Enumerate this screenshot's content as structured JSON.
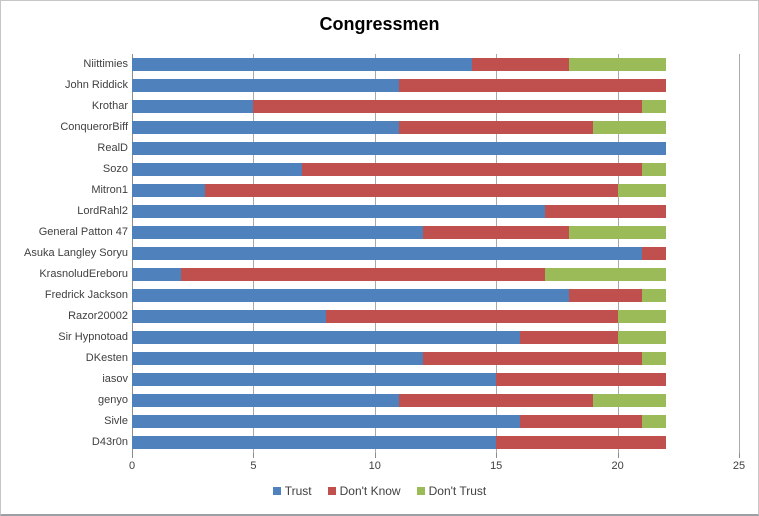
{
  "chart_data": {
    "type": "bar",
    "orientation": "horizontal",
    "stacked": true,
    "title": "Congressmen",
    "categories": [
      "Niittimies",
      "John Riddick",
      "Krothar",
      "ConquerorBiff",
      "RealD",
      "Sozo",
      "Mitron1",
      "LordRahl2",
      "General Patton 47",
      "Asuka Langley Soryu",
      "KrasnoludEreboru",
      "Fredrick Jackson",
      "Razor20002",
      "Sir Hypnotoad",
      "DKesten",
      "iasov",
      "genyo",
      "Sivle",
      "D43r0n"
    ],
    "series": [
      {
        "name": "Trust",
        "color": "#4F81BD",
        "values": [
          14,
          11,
          5,
          11,
          22,
          7,
          3,
          17,
          12,
          21,
          2,
          18,
          8,
          16,
          12,
          15,
          11,
          16,
          15
        ]
      },
      {
        "name": "Don't Know",
        "color": "#C0504D",
        "values": [
          4,
          11,
          16,
          8,
          0,
          14,
          17,
          5,
          6,
          1,
          15,
          3,
          12,
          4,
          9,
          7,
          8,
          5,
          7
        ]
      },
      {
        "name": "Don't Trust",
        "color": "#9BBB59",
        "values": [
          4,
          0,
          1,
          3,
          0,
          1,
          2,
          0,
          4,
          0,
          5,
          1,
          2,
          2,
          1,
          0,
          3,
          1,
          0
        ]
      }
    ],
    "xlim": [
      0,
      25
    ],
    "x_ticks": [
      0,
      5,
      10,
      15,
      20,
      25
    ],
    "grid": true,
    "legend_position": "bottom"
  },
  "styles": {
    "background": "#FFFFFF",
    "gridline_color": "#A9A9A9",
    "axis_line_color": "#8C8C8C",
    "label_color": "#404040",
    "title_color": "#000000",
    "border_color": "#C6C6C6"
  }
}
